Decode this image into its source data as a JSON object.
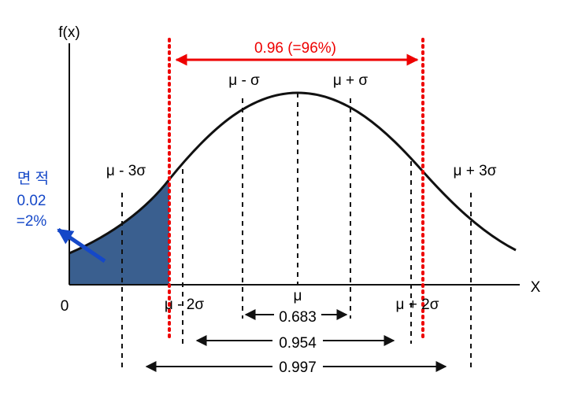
{
  "axes": {
    "y_label": "f(x)",
    "x_label": "X",
    "origin": "0"
  },
  "markers": [
    {
      "label": "μ - 3σ"
    },
    {
      "label": "μ - 2σ"
    },
    {
      "label": "μ - σ"
    },
    {
      "label": "μ"
    },
    {
      "label": "μ + σ"
    },
    {
      "label": "μ + 2σ"
    },
    {
      "label": "μ + 3σ"
    }
  ],
  "intervals": [
    {
      "label": "0.683"
    },
    {
      "label": "0.954"
    },
    {
      "label": "0.997"
    }
  ],
  "highlight": {
    "label": "0.96  (=96%)"
  },
  "area_note": {
    "lines": [
      "면 적",
      "0.02",
      "=2%"
    ]
  }
}
